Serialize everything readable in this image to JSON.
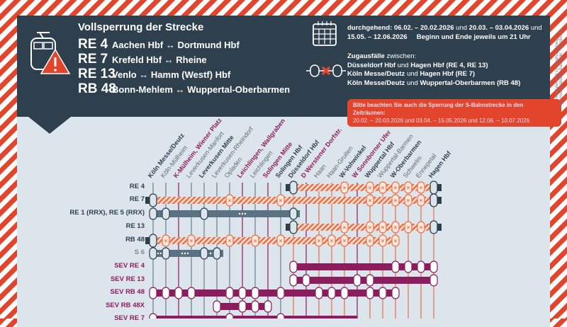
{
  "header": {
    "title": "Vollsperrung der Strecke",
    "closures": [
      {
        "line": "RE 4",
        "route": "Aachen Hbf ↔ Dortmund Hbf"
      },
      {
        "line": "RE 7",
        "route": "Krefeld Hbf ↔ Rheine"
      },
      {
        "line": "RE 13",
        "route": "Venlo ↔ Hamm (Westf) Hbf"
      },
      {
        "line": "RB 48",
        "route": "Bonn-Mehlem ↔ Wuppertal-Oberbarmen"
      }
    ]
  },
  "dates": {
    "prefix": "durchgehend:",
    "p1": "06.02. – 20.02.2026",
    "and1": "und",
    "p2": "20.03. – 03.04.2026",
    "and2": "und",
    "p3": "15.05. – 12.06.2026",
    "note": "Beginn und Ende jeweils um 21 Uhr"
  },
  "cancellations": {
    "heading": "Zugausfälle",
    "heading_rest": "zwischen:",
    "items": [
      {
        "a": "Düsseldorf Hbf",
        "und": "und",
        "b": "Hagen Hbf (RE 4, RE 13)"
      },
      {
        "a": "Köln Messe/Deutz",
        "und": "und",
        "b": "Hagen Hbf (RE 7)"
      },
      {
        "a": "Köln Messe/Deutz",
        "und": "und",
        "b": "Wuppertal-Oberbarmen (RB 48)"
      }
    ]
  },
  "sbahn_note": {
    "line1": "Bitte beachten Sie auch die Sperrung der S-Bahnstrecke in den Zeiträumen:",
    "line2": "20.02. – 20.03.2026 und 03.04. – 15.05.2026 und 12.06. – 10.07.2026"
  },
  "side_text": "Totalsperrung Generalsanierung – Informationsplakat Baustelle · Version 01",
  "icons": [
    "train-warning-icon",
    "calendar-icon",
    "cancelled-stop-icon"
  ],
  "colors": {
    "dark": "#2e3f4d",
    "cancel": "#e8704a",
    "sev": "#8b1d5e",
    "rail": "#5a7282",
    "warn": "#e2452c"
  },
  "stations": [
    {
      "name": "Köln Messe/Deutz",
      "style": "bold"
    },
    {
      "name": "Köln-Mülheim",
      "style": "normal"
    },
    {
      "name": "K-Mülheim, Wiener Platz",
      "style": "sev"
    },
    {
      "name": "Leverkusen-Manfort",
      "style": "normal"
    },
    {
      "name": "Leverkusen Mitte",
      "style": "bold"
    },
    {
      "name": "Leverkusen-Rheindorf",
      "style": "normal"
    },
    {
      "name": "Opladen",
      "style": "normal"
    },
    {
      "name": "Leichlingen, Wallgraben",
      "style": "sev"
    },
    {
      "name": "Leichlingen",
      "style": "normal"
    },
    {
      "name": "Solingen Mitte",
      "style": "sev"
    },
    {
      "name": "Solingen Hbf",
      "style": "bold"
    },
    {
      "name": "Düsseldorf Hbf",
      "style": "bold"
    },
    {
      "name": "D Werstener Dorfstr.",
      "style": "sev"
    },
    {
      "name": "Haan",
      "style": "normal"
    },
    {
      "name": "Haan-Gruiten",
      "style": "normal"
    },
    {
      "name": "W-Vohwinkel",
      "style": "bold"
    },
    {
      "name": "W Sonnborner Ufer",
      "style": "sev"
    },
    {
      "name": "Wuppertal Hbf",
      "style": "bold"
    },
    {
      "name": "Wuppertal-Barmen",
      "style": "normal"
    },
    {
      "name": "W-Oberbarmen",
      "style": "bold"
    },
    {
      "name": "Schwelm",
      "style": "normal"
    },
    {
      "name": "Ennepetal",
      "style": "normal"
    },
    {
      "name": "Hagen Hbf",
      "style": "bold"
    }
  ],
  "rows": [
    {
      "label": "RE 4",
      "kind": "cancel",
      "from": 11,
      "to": 22,
      "ends": [
        11,
        22
      ],
      "stops": [
        15,
        17,
        18,
        19,
        20,
        21
      ]
    },
    {
      "label": "RE 7",
      "kind": "cancel",
      "from": 0,
      "to": 22,
      "ends": [
        0,
        22
      ],
      "stops": [
        6,
        10,
        17,
        19,
        20,
        21
      ]
    },
    {
      "label": "RE 1 (RRX), RE 5 (RRX)",
      "kind": "run",
      "from": 0,
      "to": 11.5,
      "ends": [],
      "stops": [
        0,
        1,
        4,
        11
      ],
      "dots": [
        7
      ]
    },
    {
      "label": "RE 13",
      "kind": "cancel",
      "from": 11,
      "to": 22,
      "ends": [
        11,
        22
      ],
      "stops": [
        15,
        17,
        18,
        19,
        20,
        21
      ]
    },
    {
      "label": "RB 48",
      "kind": "cancel",
      "from": 0,
      "to": 19,
      "ends": [
        0
      ],
      "stops": [
        1,
        3,
        6,
        8,
        10,
        13,
        14,
        15,
        17,
        18,
        19
      ]
    },
    {
      "label": "S 6",
      "kind": "run",
      "from": 0,
      "to": 5.5,
      "ends": [],
      "stops": [
        0,
        1,
        4,
        5
      ],
      "dots": [
        0.6,
        2.5,
        4.5
      ]
    },
    {
      "label": "SEV RE 4",
      "kind": "sev",
      "from": 11,
      "to": 22,
      "ends": [],
      "stops": [
        11,
        19,
        20,
        21,
        22
      ]
    },
    {
      "label": "SEV RE 13",
      "kind": "sev",
      "from": 11,
      "to": 22,
      "ends": [],
      "stops": [
        11,
        12,
        16,
        17,
        22
      ]
    },
    {
      "label": "SEV RB 48",
      "kind": "sev",
      "from": 0,
      "to": 19,
      "ends": [],
      "stops": [
        0,
        1,
        2,
        3,
        6,
        7,
        8,
        10,
        13,
        14,
        15,
        17,
        18,
        19
      ]
    },
    {
      "label": "SEV RB 48X",
      "kind": "sev",
      "from": 5,
      "to": 9,
      "ends": [],
      "stops": [
        5,
        9,
        7,
        8
      ]
    },
    {
      "label": "SEV RE 7",
      "kind": "sev",
      "from": 0,
      "to": 16,
      "ends": [],
      "stops": [
        0,
        6,
        10
      ]
    }
  ]
}
